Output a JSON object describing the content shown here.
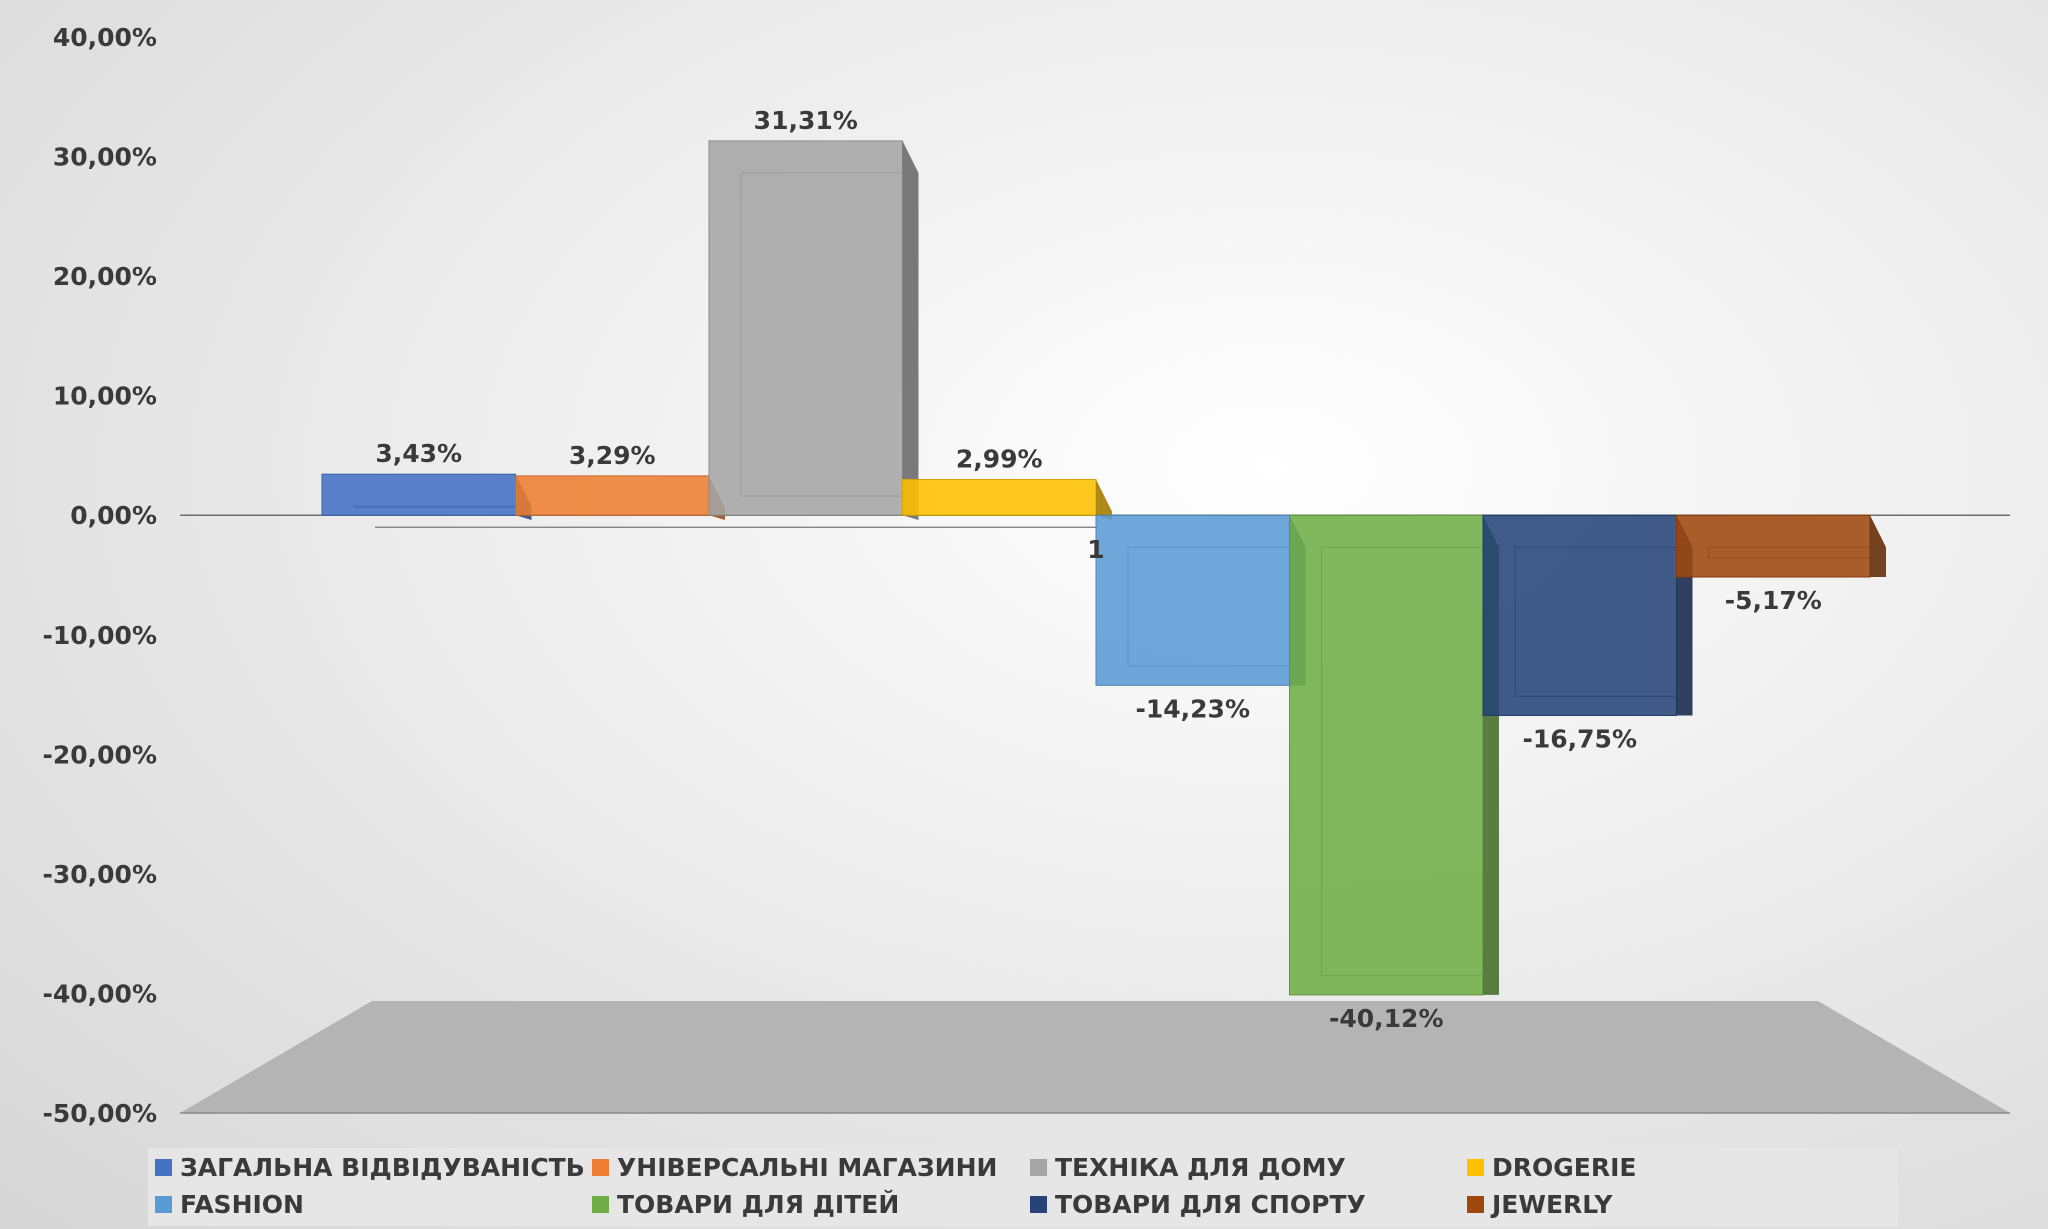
{
  "chart_data": {
    "type": "bar",
    "categories": [
      "1"
    ],
    "series": [
      {
        "name": "ЗАГАЛЬНА ВІДВІДУВАНІСТЬ",
        "values": [
          3.43
        ],
        "label": "3,43%",
        "color": "#4472c4"
      },
      {
        "name": "УНІВЕРСАЛЬНІ МАГАЗИНИ",
        "values": [
          3.29
        ],
        "label": "3,29%",
        "color": "#ed7d31"
      },
      {
        "name": "ТЕХНІКА ДЛЯ ДОМУ",
        "values": [
          31.31
        ],
        "label": "31,31%",
        "color": "#a5a5a5"
      },
      {
        "name": "DROGERIE",
        "values": [
          2.99
        ],
        "label": "2,99%",
        "color": "#ffc000"
      },
      {
        "name": "FASHION",
        "values": [
          -14.23
        ],
        "label": "-14,23%",
        "color": "#5b9bd5"
      },
      {
        "name": "ТОВАРИ ДЛЯ ДІТЕЙ",
        "values": [
          -40.12
        ],
        "label": "-40,12%",
        "color": "#70ad47"
      },
      {
        "name": "ТОВАРИ ДЛЯ СПОРТУ",
        "values": [
          -16.75
        ],
        "label": "-16,75%",
        "color": "#264478"
      },
      {
        "name": "JEWERLY",
        "values": [
          -5.17
        ],
        "label": "-5,17%",
        "color": "#9e480e"
      }
    ],
    "ylim": [
      -50,
      40
    ],
    "yticks": [
      "40,00%",
      "30,00%",
      "20,00%",
      "10,00%",
      "0,00%",
      "-10,00%",
      "-20,00%",
      "-30,00%",
      "-40,00%",
      "-50,00%"
    ],
    "title": "",
    "xlabel": "",
    "ylabel": "",
    "legend_position": "bottom"
  }
}
